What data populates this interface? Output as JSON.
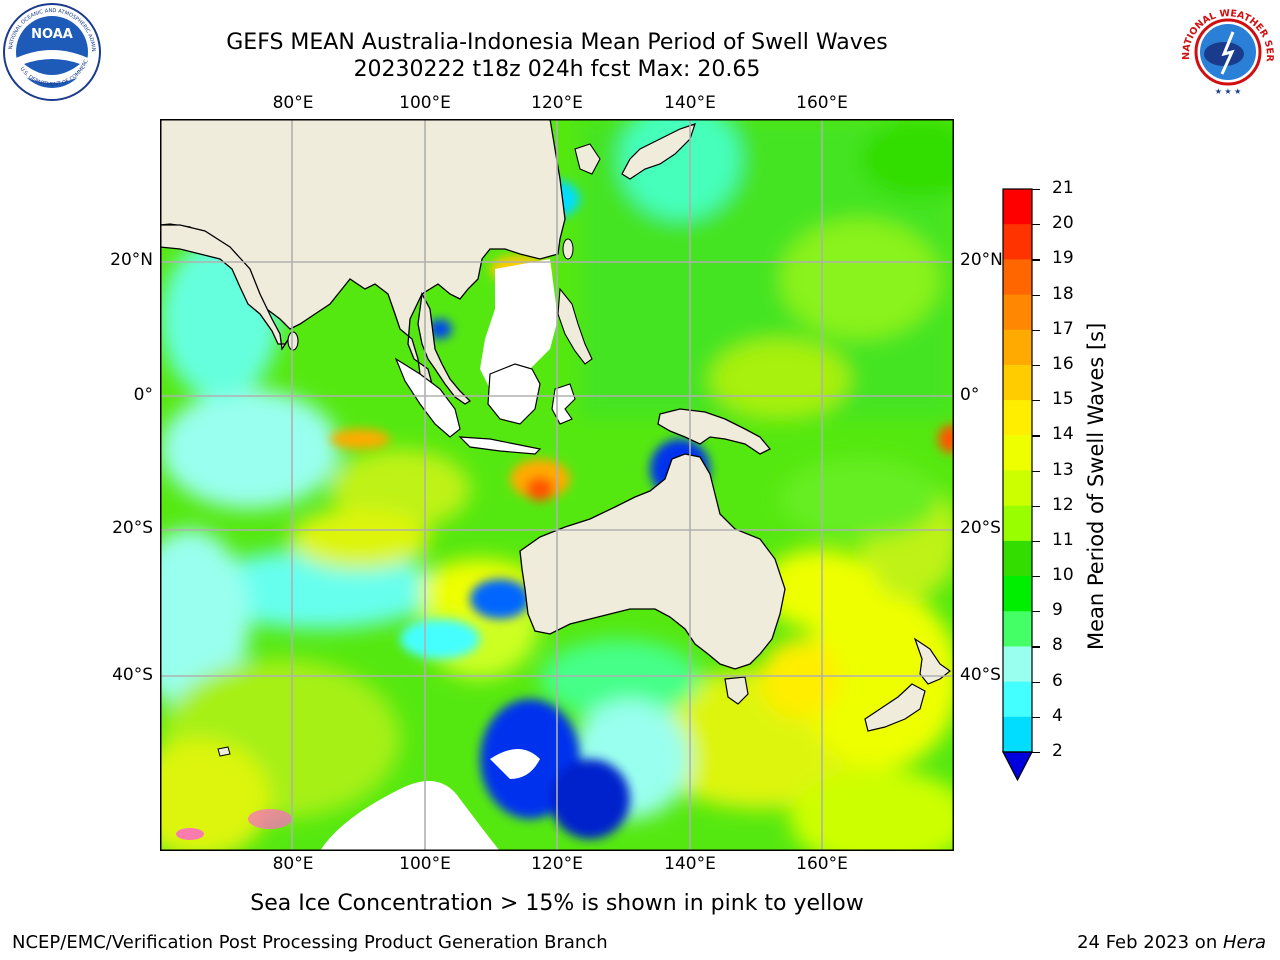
{
  "header": {
    "title_line1": "GEFS MEAN Australia-Indonesia Mean Period of Swell Waves",
    "title_line2": "20230222 t18z 024h fcst   Max: 20.65"
  },
  "logos": {
    "noaa_text": "NOAA",
    "noaa_ring_text": "NATIONAL OCEANIC AND ATMOSPHERIC ADMINISTRATION",
    "noaa_ring_bottom": "U.S. DEPARTMENT OF COMMERCE",
    "nws_ring_text": "NATIONAL WEATHER SERVICE"
  },
  "map": {
    "lon_labels": [
      "80°E",
      "100°E",
      "120°E",
      "140°E",
      "160°E"
    ],
    "lat_labels": [
      "20°N",
      "0°",
      "20°S",
      "40°S"
    ],
    "colors": {
      "land": "#f0ecdc",
      "grid": "#b0b0b0",
      "ice_white": "#ffffff"
    }
  },
  "colorbar": {
    "ticks": [
      "21",
      "20",
      "19",
      "18",
      "17",
      "16",
      "15",
      "14",
      "13",
      "12",
      "11",
      "10",
      "9",
      "8",
      "6",
      "4",
      "2"
    ],
    "label": "Mean Period of Swell Waves [s]",
    "colors": [
      "#fe0000",
      "#ff3300",
      "#ff6600",
      "#ff8800",
      "#ffaa00",
      "#ffcc00",
      "#ffee00",
      "#eeff00",
      "#ccff00",
      "#99ff00",
      "#33dd00",
      "#00ee00",
      "#44ff66",
      "#99ffee",
      "#44ffff",
      "#00ddff",
      "#0066ff",
      "#0000dd"
    ]
  },
  "notes": {
    "ice": "Sea Ice Concentration > 15% is shown in pink to yellow"
  },
  "footer": {
    "left": "NCEP/EMC/Verification Post Processing Product Generation Branch",
    "right_date": "24 Feb 2023 on ",
    "right_host": "Hera"
  }
}
